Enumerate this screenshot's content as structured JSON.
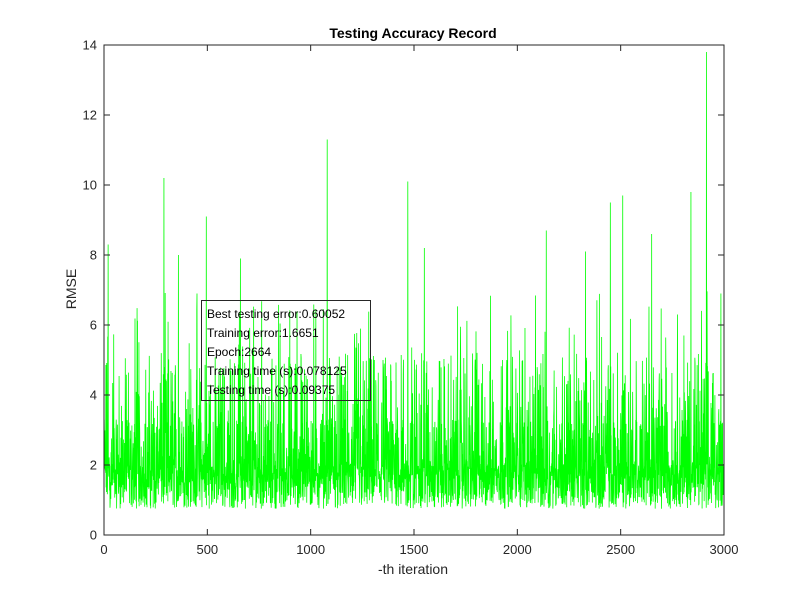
{
  "chart_data": {
    "type": "line",
    "title": "Testing Accuracy Record",
    "xlabel": "-th iteration",
    "ylabel": "RMSE",
    "xlim": [
      0,
      3000
    ],
    "ylim": [
      0,
      14
    ],
    "xticks": [
      0,
      500,
      1000,
      1500,
      2000,
      2500,
      3000
    ],
    "yticks": [
      0,
      2,
      4,
      6,
      8,
      10,
      12,
      14
    ],
    "grid": false,
    "line_color": "#00ff00",
    "series": [
      {
        "approx_n_points": 3000,
        "baseline_min": 0.7,
        "typical_range": [
          0.8,
          4.5
        ],
        "notable_peaks": [
          {
            "x": 20,
            "y": 8.3
          },
          {
            "x": 290,
            "y": 10.2
          },
          {
            "x": 360,
            "y": 8.0
          },
          {
            "x": 495,
            "y": 9.1
          },
          {
            "x": 660,
            "y": 7.9
          },
          {
            "x": 1080,
            "y": 11.3
          },
          {
            "x": 1470,
            "y": 10.1
          },
          {
            "x": 1550,
            "y": 8.2
          },
          {
            "x": 2140,
            "y": 8.7
          },
          {
            "x": 2330,
            "y": 8.1
          },
          {
            "x": 2450,
            "y": 9.5
          },
          {
            "x": 2510,
            "y": 9.7
          },
          {
            "x": 2650,
            "y": 8.6
          },
          {
            "x": 2840,
            "y": 9.8
          },
          {
            "x": 2915,
            "y": 13.8
          },
          {
            "x": 2985,
            "y": 6.9
          }
        ]
      }
    ],
    "annotation": {
      "lines": [
        "Best testing error:0.60052",
        "Training error:1.6651",
        "Epoch:2664",
        "Training time (s):0.078125",
        "Testing time (s):0.09375"
      ]
    }
  }
}
